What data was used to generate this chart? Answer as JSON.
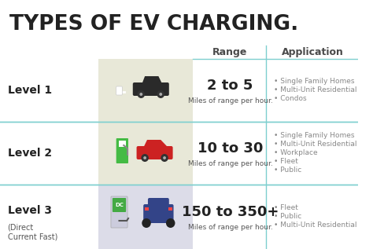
{
  "title": "TYPES OF EV CHARGING.",
  "bg_color": "#ffffff",
  "col_header_range": "Range",
  "col_header_app": "Application",
  "header_color": "#4a4a4a",
  "divider_color": "#7ecfcf",
  "row_bg_color": "#e8e8d8",
  "levels": [
    "Level 1",
    "Level 2",
    "Level 3"
  ],
  "level3_sub": "(Direct\nCurrent Fast)",
  "ranges": [
    "2 to 5",
    "10 to 30",
    "150 to 350+"
  ],
  "range_sub": "Miles of range per hour.",
  "applications": [
    [
      "Single Family Homes",
      "Multi-Unit Residential",
      "Condos"
    ],
    [
      "Single Family Homes",
      "Multi-Unit Residential",
      "Workplace",
      "Fleet",
      "Public"
    ],
    [
      "Fleet",
      "Public",
      "Multi-Unit Residential"
    ]
  ],
  "text_color_dark": "#222222",
  "text_color_mid": "#555555",
  "text_color_light": "#888888",
  "range_text_color": "#222222",
  "app_text_color": "#888888"
}
